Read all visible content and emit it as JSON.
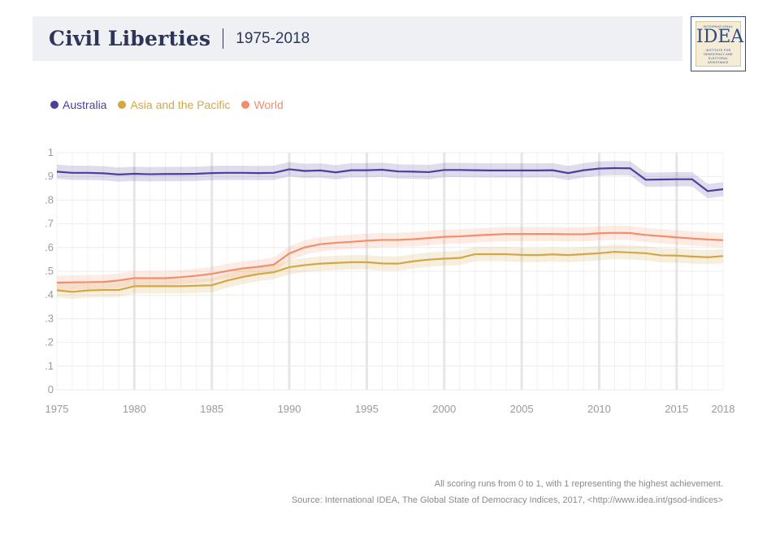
{
  "header": {
    "title": "Civil Liberties",
    "subtitle": "1975-2018"
  },
  "logo": {
    "top_text": "INTERNATIONAL",
    "mark": "IDEA",
    "sub_text": "INSTITUTE FOR DEMOCRACY AND ELECTORAL ASSISTANCE"
  },
  "legend": [
    {
      "label": "Australia",
      "color": "#4b3f9a"
    },
    {
      "label": "Asia and the Pacific",
      "color": "#d4a646"
    },
    {
      "label": "World",
      "color": "#f28e6c"
    }
  ],
  "footer": {
    "note": "All scoring runs from 0 to 1, with 1 representing the highest achievement.",
    "source": "Source: International IDEA, The Global State of Democracy Indices, 2017, <http://www.idea.int/gsod-indices>"
  },
  "chart_data": {
    "type": "line",
    "title": "Civil Liberties",
    "subtitle": "1975-2018",
    "xlabel": "",
    "ylabel": "",
    "xlim": [
      1975,
      2018
    ],
    "ylim": [
      0,
      1
    ],
    "x_ticks": [
      "1975",
      "1980",
      "1985",
      "1990",
      "1995",
      "2000",
      "2005",
      "2010",
      "2015",
      "2018"
    ],
    "y_ticks": [
      "0",
      ".1",
      ".2",
      ".3",
      ".4",
      ".5",
      ".6",
      ".7",
      ".8",
      ".9",
      "1"
    ],
    "grid": true,
    "legend_position": "top-left",
    "band_half_width": 0.03,
    "x": [
      1975,
      1976,
      1977,
      1978,
      1979,
      1980,
      1981,
      1982,
      1983,
      1984,
      1985,
      1986,
      1987,
      1988,
      1989,
      1990,
      1991,
      1992,
      1993,
      1994,
      1995,
      1996,
      1997,
      1998,
      1999,
      2000,
      2001,
      2002,
      2003,
      2004,
      2005,
      2006,
      2007,
      2008,
      2009,
      2010,
      2011,
      2012,
      2013,
      2014,
      2015,
      2016,
      2017,
      2018
    ],
    "series": [
      {
        "name": "Australia",
        "color": "#4b3f9a",
        "values": [
          0.92,
          0.915,
          0.915,
          0.913,
          0.908,
          0.911,
          0.909,
          0.91,
          0.91,
          0.911,
          0.914,
          0.915,
          0.915,
          0.914,
          0.915,
          0.93,
          0.923,
          0.925,
          0.917,
          0.926,
          0.926,
          0.928,
          0.921,
          0.92,
          0.918,
          0.927,
          0.927,
          0.926,
          0.925,
          0.925,
          0.925,
          0.925,
          0.926,
          0.914,
          0.926,
          0.933,
          0.935,
          0.934,
          0.886,
          0.887,
          0.888,
          0.888,
          0.838,
          0.846
        ]
      },
      {
        "name": "Asia and the Pacific",
        "color": "#d4a646",
        "values": [
          0.42,
          0.413,
          0.419,
          0.421,
          0.421,
          0.437,
          0.437,
          0.437,
          0.437,
          0.439,
          0.441,
          0.461,
          0.476,
          0.488,
          0.496,
          0.517,
          0.526,
          0.532,
          0.535,
          0.538,
          0.538,
          0.533,
          0.532,
          0.542,
          0.549,
          0.553,
          0.556,
          0.572,
          0.572,
          0.572,
          0.569,
          0.568,
          0.571,
          0.568,
          0.572,
          0.576,
          0.582,
          0.579,
          0.576,
          0.567,
          0.566,
          0.562,
          0.559,
          0.564
        ]
      },
      {
        "name": "World",
        "color": "#f28e6c",
        "values": [
          0.452,
          0.453,
          0.454,
          0.455,
          0.461,
          0.471,
          0.471,
          0.471,
          0.475,
          0.481,
          0.489,
          0.501,
          0.512,
          0.519,
          0.528,
          0.575,
          0.601,
          0.614,
          0.62,
          0.624,
          0.629,
          0.632,
          0.632,
          0.635,
          0.64,
          0.645,
          0.647,
          0.651,
          0.654,
          0.657,
          0.657,
          0.657,
          0.657,
          0.656,
          0.656,
          0.66,
          0.662,
          0.661,
          0.653,
          0.648,
          0.643,
          0.638,
          0.634,
          0.631
        ]
      }
    ]
  }
}
